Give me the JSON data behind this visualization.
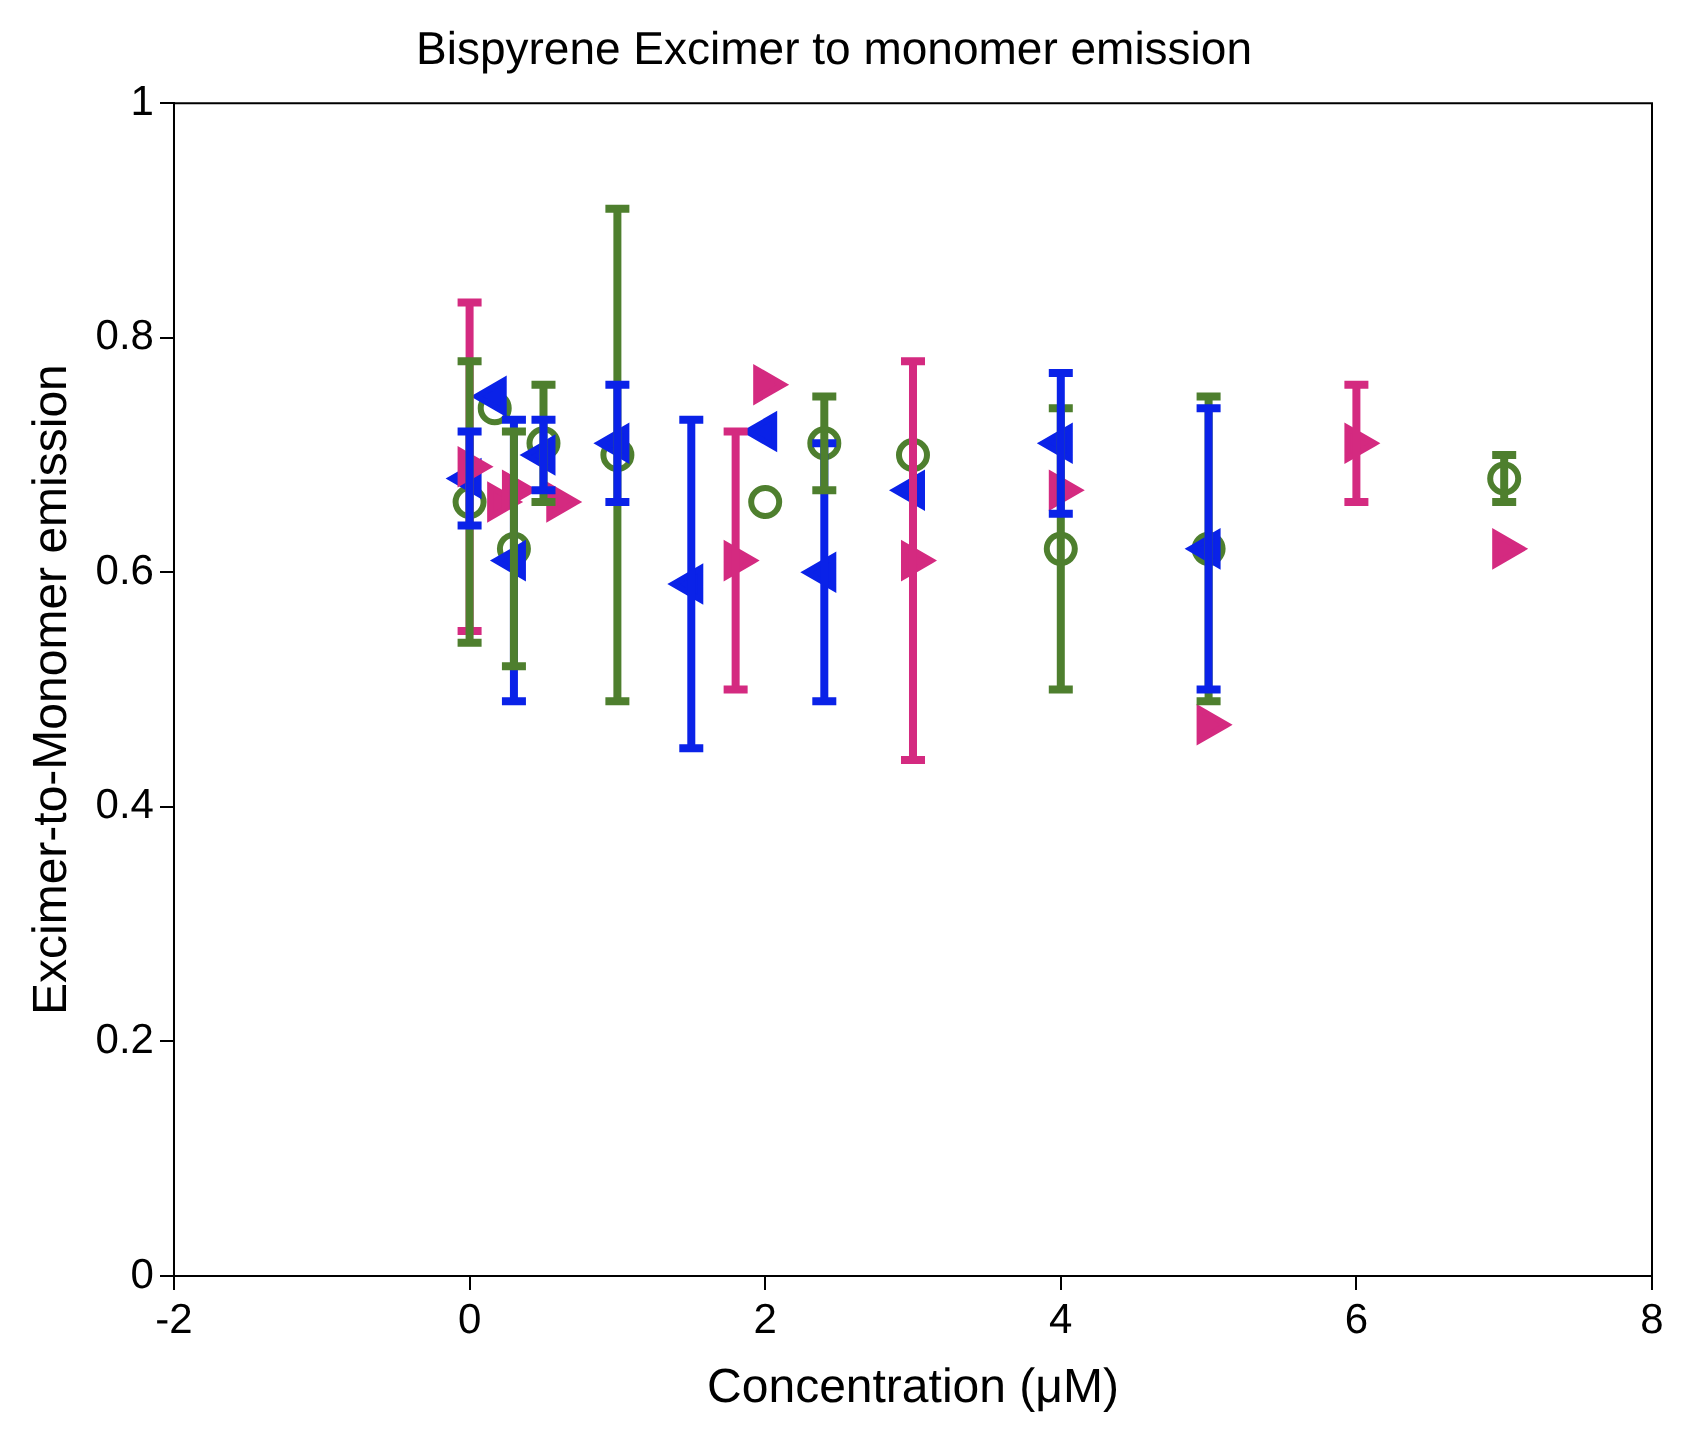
{
  "chart_data": {
    "type": "scatter",
    "title": "Bispyrene Excimer to monomer emission",
    "xlabel": "Concentration (μM)",
    "ylabel": "Excimer-to-Monomer emission",
    "xlim": [
      -2,
      8
    ],
    "xticks": [
      -2,
      0,
      2,
      4,
      6,
      8
    ],
    "ylim": [
      0,
      1
    ],
    "yticks": [
      0,
      0.2,
      0.4,
      0.6,
      0.8,
      1
    ],
    "grid": false,
    "legend": false,
    "series": [
      {
        "color": "#4e7f2e",
        "marker": "circle",
        "x": [
          0,
          0.17,
          0.3,
          0.5,
          1,
          2,
          2.4,
          3,
          4,
          5,
          7
        ],
        "values": [
          0.66,
          0.74,
          0.62,
          0.71,
          0.7,
          0.66,
          0.71,
          0.7,
          0.62,
          0.62,
          0.68
        ],
        "errors": [
          [
            0.54,
            0.78
          ],
          null,
          [
            0.52,
            0.72
          ],
          [
            0.66,
            0.76
          ],
          [
            0.49,
            0.91
          ],
          null,
          [
            0.67,
            0.75
          ],
          null,
          [
            0.5,
            0.74
          ],
          [
            0.49,
            0.75
          ],
          [
            0.66,
            0.7
          ]
        ]
      },
      {
        "color": "#0a22e8",
        "marker": "triangle",
        "x": [
          0,
          0.17,
          0.3,
          0.5,
          1,
          1.5,
          2,
          2.4,
          3,
          4,
          5
        ],
        "values": [
          0.68,
          0.75,
          0.61,
          0.7,
          0.71,
          0.59,
          0.72,
          0.6,
          0.67,
          0.71,
          0.62
        ],
        "errors": [
          [
            0.64,
            0.72
          ],
          null,
          [
            0.49,
            0.73
          ],
          [
            0.67,
            0.73
          ],
          [
            0.66,
            0.76
          ],
          [
            0.45,
            0.73
          ],
          null,
          [
            0.49,
            0.71
          ],
          null,
          [
            0.65,
            0.77
          ],
          [
            0.5,
            0.74
          ]
        ]
      },
      {
        "color": "#d42a80",
        "marker": "triangle",
        "x": [
          0,
          0.2,
          0.3,
          0.6,
          1.8,
          2,
          3,
          4,
          5,
          6,
          7
        ],
        "values": [
          0.69,
          0.66,
          0.67,
          0.66,
          0.61,
          0.76,
          0.61,
          0.67,
          0.47,
          0.71,
          0.62
        ],
        "errors": [
          [
            0.55,
            0.83
          ],
          null,
          null,
          null,
          [
            0.5,
            0.72
          ],
          null,
          [
            0.44,
            0.78
          ],
          null,
          null,
          [
            0.66,
            0.76
          ],
          null
        ]
      }
    ]
  }
}
